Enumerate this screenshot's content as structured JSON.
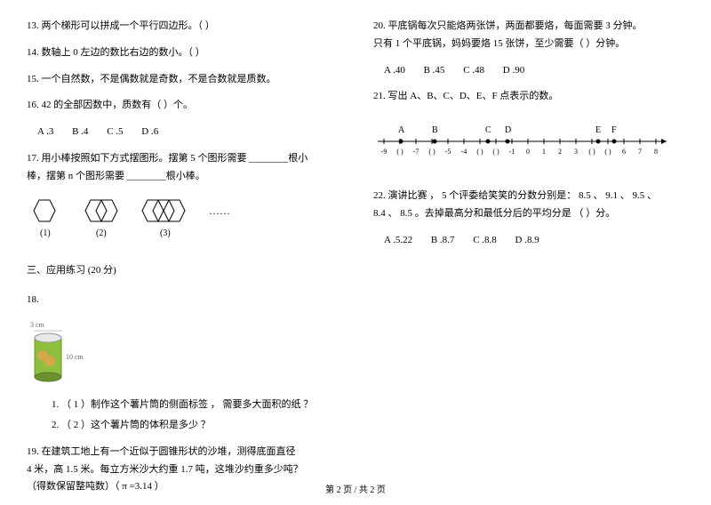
{
  "left": {
    "q13": "13.  两个梯形可以拼成一个平行四边形。（            ）",
    "q14": "14.  数轴上  0 左边的数比右边的数小。（            ）",
    "q15": "15.  一个自然数，不是偶数就是奇数，不是合数就是质数。",
    "q16": "16. 42  的全部因数中，质数有（      ）个。",
    "q16opts": {
      "a": "A .3",
      "b": "B .4",
      "c": "C .5",
      "d": "D .6"
    },
    "q17a": "17.  用小棒按照如下方式摆图形。摆第    5 个图形需要  ________根小",
    "q17b": "棒，摆第  n 个图形需要  ________根小棒。",
    "hexLabels": {
      "a": "(1)",
      "b": "(2)",
      "c": "(3)"
    },
    "sec3": "三、应用练习  (20  分)",
    "q18": "18.",
    "chipTop": "3 cm",
    "chipSide": "10 cm",
    "q18s1": "1.   （ 1 ）制作这个薯片筒的侧面标签  ，  需要多大面积的纸  ？",
    "q18s2": "2.   （ 2 ）这个薯片筒的体积是多少  ？",
    "q19a": "19.  在建筑工地上有一个近似于圆锥形状的沙堆，测得底面直径",
    "q19b": "4 米，高 1.5  米。每立方米沙大约重    1.7 吨，这堆沙约重多少吨？",
    "q19c": "（得数保留整吨数）（  π =3.14 ）"
  },
  "right": {
    "q20a": "20.  平底锅每次只能烙两张饼，两面都要烙，每面需要      3 分钟。",
    "q20b": "只有  1 个平底锅，妈妈要烙   15 张饼，至少需要（        ）分钟。",
    "q20opts": {
      "a": "A .40",
      "b": "B .45",
      "c": "C .48",
      "d": "D .90"
    },
    "q21": "21.  写出 A、B、C、D、E、F 点表示的数。",
    "nlLabels": {
      "A": "A",
      "B": "B",
      "C": "C",
      "D": "D",
      "E": "E",
      "F": "F"
    },
    "ticks": [
      "-9",
      "(   )",
      "-7",
      "(   )",
      "-5",
      "-4",
      "(   )",
      "(   )",
      "-1",
      "0",
      "1",
      "2",
      "3",
      "(   )",
      "(   )",
      "6",
      "7",
      "8"
    ],
    "q22a": "22.  演讲比赛  ， 5  个评委给笑笑的分数分别是：    8.5 、 9.1 、 9.5 、",
    "q22b": "8.4 、 8.5 。去掉最高分和最低分后的平均分是    （          ）分。",
    "q22opts": {
      "a": "A .5.22",
      "b": "B .8.7",
      "c": "C .8.8",
      "d": "D .8.9"
    }
  },
  "footer": "第  2 页   /  共  2 页"
}
